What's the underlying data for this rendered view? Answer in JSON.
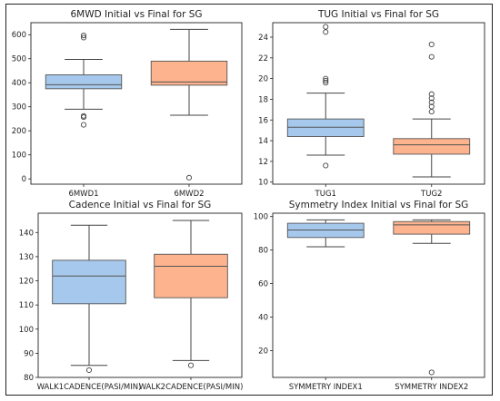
{
  "chart_data": [
    {
      "type": "box",
      "title": "6MWD Initial vs Final for SG",
      "ylim": [
        -22,
        650
      ],
      "yticks": [
        0,
        100,
        200,
        300,
        400,
        500,
        600
      ],
      "categories": [
        "6MWD1",
        "6MWD2"
      ],
      "boxes": [
        {
          "color": "#a6c8ec",
          "whisker_low": 290,
          "q1": 375,
          "median": 392,
          "q3": 433,
          "whisker_high": 497,
          "outliers": [
            597,
            588,
            262,
            257,
            225
          ]
        },
        {
          "color": "#fdb38e",
          "whisker_low": 265,
          "q1": 390,
          "median": 403,
          "q3": 490,
          "whisker_high": 622,
          "outliers": [
            5
          ]
        }
      ]
    },
    {
      "type": "box",
      "title": "TUG Initial vs Final for SG",
      "ylim": [
        9.8,
        25.4
      ],
      "yticks": [
        10,
        12,
        14,
        16,
        18,
        20,
        22,
        24
      ],
      "categories": [
        "TUG1",
        "TUG2"
      ],
      "boxes": [
        {
          "color": "#a6c8ec",
          "whisker_low": 12.6,
          "q1": 14.4,
          "median": 15.3,
          "q3": 16.1,
          "whisker_high": 18.6,
          "outliers": [
            25.0,
            24.5,
            20.0,
            19.8,
            19.6,
            11.6
          ]
        },
        {
          "color": "#fdb38e",
          "whisker_low": 10.5,
          "q1": 12.7,
          "median": 13.6,
          "q3": 14.2,
          "whisker_high": 16.1,
          "outliers": [
            23.3,
            22.1,
            18.5,
            18.1,
            17.7,
            17.3,
            16.8
          ]
        }
      ]
    },
    {
      "type": "box",
      "title": "Cadence Initial vs Final for SG",
      "ylim": [
        80,
        148
      ],
      "yticks": [
        80,
        90,
        100,
        110,
        120,
        130,
        140
      ],
      "categories": [
        "WALK1CADENCE(PASI/MIN)",
        "WALK2CADENCE(PASI/MIN)"
      ],
      "boxes": [
        {
          "color": "#a6c8ec",
          "whisker_low": 85,
          "q1": 110.5,
          "median": 122,
          "q3": 128.5,
          "whisker_high": 143,
          "outliers": [
            83
          ]
        },
        {
          "color": "#fdb38e",
          "whisker_low": 87,
          "q1": 113,
          "median": 126,
          "q3": 131,
          "whisker_high": 145,
          "outliers": [
            85
          ]
        }
      ]
    },
    {
      "type": "box",
      "title": "Symmetry Index Initial vs Final for SG",
      "ylim": [
        4,
        102
      ],
      "yticks": [
        20,
        40,
        60,
        80,
        100
      ],
      "categories": [
        "SYMMETRY INDEX1",
        "SYMMETRY INDEX2"
      ],
      "boxes": [
        {
          "color": "#a6c8ec",
          "whisker_low": 82,
          "q1": 87.5,
          "median": 92,
          "q3": 96,
          "whisker_high": 98,
          "outliers": []
        },
        {
          "color": "#fdb38e",
          "whisker_low": 84,
          "q1": 89.5,
          "median": 95,
          "q3": 97,
          "whisker_high": 98,
          "outliers": [
            7
          ]
        }
      ]
    }
  ]
}
